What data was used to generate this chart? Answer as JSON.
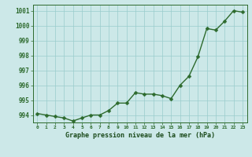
{
  "x": [
    0,
    1,
    2,
    3,
    4,
    5,
    6,
    7,
    8,
    9,
    10,
    11,
    12,
    13,
    14,
    15,
    16,
    17,
    18,
    19,
    20,
    21,
    22,
    23
  ],
  "y": [
    994.1,
    994.0,
    993.9,
    993.8,
    993.6,
    993.8,
    994.0,
    994.0,
    994.3,
    994.8,
    994.8,
    995.5,
    995.4,
    995.4,
    995.3,
    995.1,
    996.0,
    996.6,
    997.9,
    999.8,
    999.7,
    1000.3,
    1001.0,
    1000.9
  ],
  "bg_color": "#cce8e8",
  "grid_color": "#99cccc",
  "line_color": "#2d6a2d",
  "marker_color": "#2d6a2d",
  "xlabel": "Graphe pression niveau de la mer (hPa)",
  "xlabel_color": "#1a4a1a",
  "tick_color": "#2d6a2d",
  "ylim": [
    993.5,
    1001.4
  ],
  "yticks": [
    994,
    995,
    996,
    997,
    998,
    999,
    1000,
    1001
  ],
  "xtick_labels": [
    "0",
    "1",
    "2",
    "3",
    "4",
    "5",
    "6",
    "7",
    "8",
    "9",
    "10",
    "11",
    "12",
    "13",
    "14",
    "15",
    "16",
    "17",
    "18",
    "19",
    "20",
    "21",
    "22",
    "23"
  ],
  "line_width": 1.0,
  "marker_size": 2.5,
  "fig_bg_color": "#cce8e8"
}
